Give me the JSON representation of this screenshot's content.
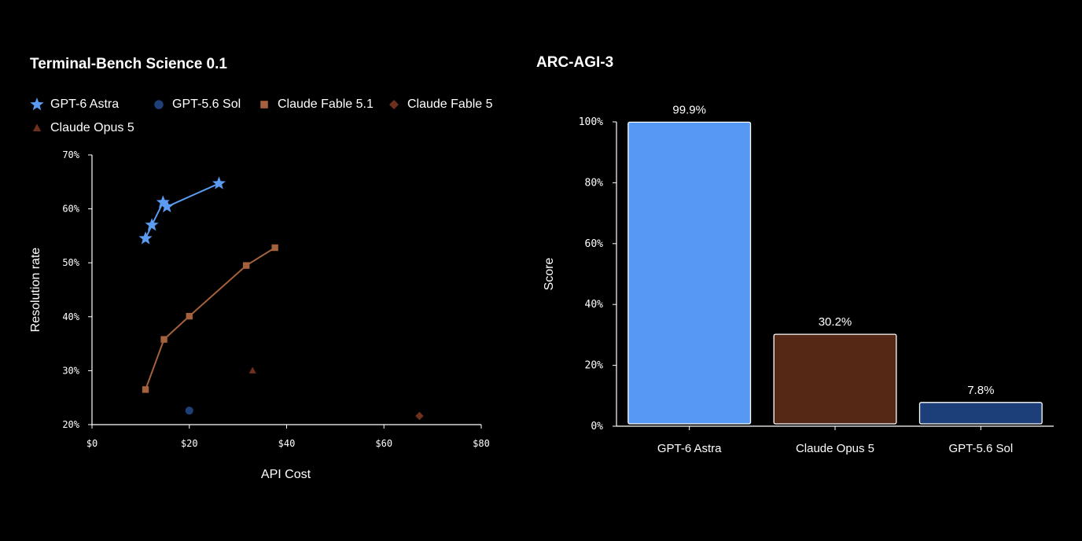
{
  "chart_data": [
    {
      "type": "scatter",
      "title": "Terminal-Bench Science 0.1",
      "xlabel": "API Cost",
      "ylabel": "Resolution rate",
      "xlim": [
        0,
        80
      ],
      "ylim": [
        20,
        70
      ],
      "x_ticks": [
        "$0",
        "$20",
        "$40",
        "$60",
        "$80"
      ],
      "x_tick_values": [
        0,
        20,
        40,
        60,
        80
      ],
      "y_ticks": [
        "20%",
        "30%",
        "40%",
        "50%",
        "60%",
        "70%"
      ],
      "y_tick_values": [
        20,
        30,
        40,
        50,
        60,
        70
      ],
      "legend_placement": "top",
      "series": [
        {
          "name": "GPT-6 Astra",
          "color": "#5b9cf2",
          "marker": "star",
          "connected": true,
          "x": [
            11.0,
            12.3,
            14.6,
            15.4,
            26.1
          ],
          "y": [
            54.5,
            57.0,
            61.2,
            60.4,
            64.7
          ]
        },
        {
          "name": "GPT-5.6 Sol",
          "color": "#1f3f78",
          "marker": "circle",
          "connected": false,
          "x": [
            20.0
          ],
          "y": [
            22.6
          ]
        },
        {
          "name": "Claude Fable 5.1",
          "color": "#a5603c",
          "marker": "square",
          "connected": true,
          "x": [
            11.0,
            14.8,
            20.0,
            31.7,
            37.6
          ],
          "y": [
            26.5,
            35.8,
            40.1,
            49.5,
            52.8
          ]
        },
        {
          "name": "Claude Fable 5",
          "color": "#6e2f1c",
          "marker": "diamond",
          "connected": false,
          "x": [
            67.3
          ],
          "y": [
            21.6
          ]
        },
        {
          "name": "Claude Opus 5",
          "color": "#6e2f1c",
          "marker": "triangle",
          "connected": false,
          "x": [
            33.0
          ],
          "y": [
            30.0
          ]
        }
      ]
    },
    {
      "type": "bar",
      "title": "ARC-AGI-3",
      "xlabel": "",
      "ylabel": "Score",
      "ylim": [
        0,
        100
      ],
      "y_ticks": [
        "0%",
        "20%",
        "40%",
        "60%",
        "80%",
        "100%"
      ],
      "y_tick_values": [
        0,
        20,
        40,
        60,
        80,
        100
      ],
      "categories": [
        "GPT-6 Astra",
        "Claude Opus 5",
        "GPT-5.6 Sol"
      ],
      "values": [
        99.9,
        30.2,
        7.8
      ],
      "value_labels": [
        "99.9%",
        "30.2%",
        "7.8%"
      ],
      "colors": [
        "#5599f5",
        "#552816",
        "#1c3f7a"
      ]
    }
  ]
}
